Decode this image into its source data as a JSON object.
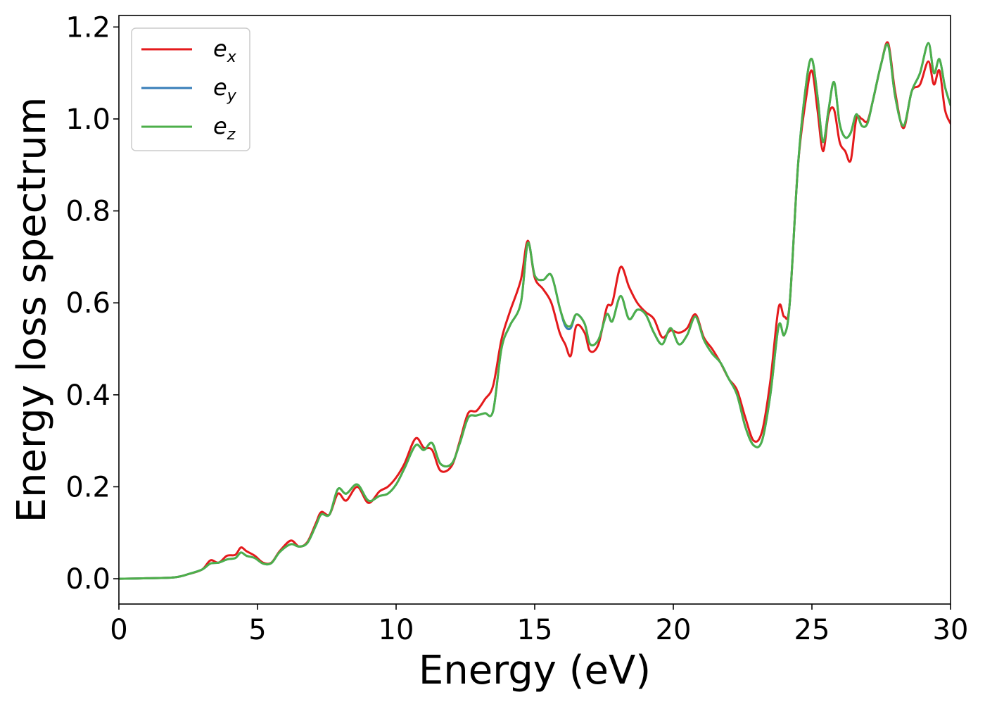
{
  "chart_data": {
    "type": "line",
    "xlabel": "Energy (eV)",
    "ylabel": "Energy loss spectrum",
    "xlim": [
      0,
      30
    ],
    "ylim": [
      -0.055,
      1.225
    ],
    "xticks": [
      0,
      5,
      10,
      15,
      20,
      25,
      30
    ],
    "xtick_labels": [
      "0",
      "5",
      "10",
      "15",
      "20",
      "25",
      "30"
    ],
    "yticks": [
      0.0,
      0.2,
      0.4,
      0.6,
      0.8,
      1.0,
      1.2
    ],
    "ytick_labels": [
      "0.0",
      "0.2",
      "0.4",
      "0.6",
      "0.8",
      "1.0",
      "1.2"
    ],
    "grid": false,
    "legend_position": "top-left",
    "series": [
      {
        "name": "e_x",
        "label_main": "e",
        "label_sub": "x",
        "color": "#e41a1c",
        "x": [
          0,
          1,
          2,
          2.5,
          3,
          3.3,
          3.6,
          3.9,
          4.2,
          4.4,
          4.6,
          4.9,
          5.2,
          5.5,
          5.8,
          6.2,
          6.5,
          6.8,
          7.1,
          7.3,
          7.6,
          7.9,
          8.2,
          8.6,
          9.0,
          9.4,
          9.7,
          10.0,
          10.3,
          10.7,
          11.0,
          11.3,
          11.6,
          12.0,
          12.3,
          12.6,
          12.9,
          13.2,
          13.5,
          13.8,
          14.1,
          14.5,
          14.75,
          15.0,
          15.3,
          15.6,
          15.9,
          16.1,
          16.3,
          16.5,
          16.8,
          17.0,
          17.3,
          17.6,
          17.8,
          18.1,
          18.4,
          18.7,
          19.0,
          19.3,
          19.6,
          19.9,
          20.2,
          20.5,
          20.8,
          21.1,
          21.4,
          21.7,
          22.0,
          22.3,
          22.6,
          22.9,
          23.2,
          23.5,
          23.8,
          24.0,
          24.2,
          24.5,
          24.8,
          25.0,
          25.2,
          25.4,
          25.6,
          25.8,
          26.0,
          26.2,
          26.4,
          26.6,
          26.8,
          27.0,
          27.2,
          27.5,
          27.75,
          28.0,
          28.3,
          28.6,
          28.9,
          29.2,
          29.4,
          29.6,
          29.8,
          30.0
        ],
        "y": [
          0.0,
          0.001,
          0.003,
          0.01,
          0.02,
          0.04,
          0.035,
          0.05,
          0.052,
          0.068,
          0.06,
          0.05,
          0.035,
          0.035,
          0.06,
          0.083,
          0.07,
          0.08,
          0.12,
          0.145,
          0.14,
          0.185,
          0.17,
          0.2,
          0.165,
          0.19,
          0.2,
          0.22,
          0.25,
          0.305,
          0.285,
          0.28,
          0.235,
          0.245,
          0.3,
          0.36,
          0.365,
          0.39,
          0.42,
          0.52,
          0.58,
          0.65,
          0.735,
          0.655,
          0.63,
          0.6,
          0.535,
          0.51,
          0.485,
          0.55,
          0.535,
          0.495,
          0.51,
          0.59,
          0.6,
          0.678,
          0.635,
          0.6,
          0.58,
          0.565,
          0.525,
          0.54,
          0.535,
          0.545,
          0.575,
          0.525,
          0.5,
          0.47,
          0.435,
          0.41,
          0.35,
          0.3,
          0.32,
          0.43,
          0.59,
          0.57,
          0.6,
          0.9,
          1.05,
          1.105,
          1.02,
          0.93,
          1.01,
          1.02,
          0.95,
          0.93,
          0.91,
          1.0,
          1.0,
          0.995,
          1.04,
          1.12,
          1.165,
          1.06,
          0.98,
          1.06,
          1.075,
          1.125,
          1.075,
          1.105,
          1.02,
          0.99
        ]
      },
      {
        "name": "e_y",
        "label_main": "e",
        "label_sub": "y",
        "color": "#377eb8",
        "x": [
          0,
          1,
          2,
          2.5,
          3,
          3.3,
          3.6,
          3.9,
          4.2,
          4.4,
          4.6,
          4.9,
          5.2,
          5.5,
          5.8,
          6.2,
          6.5,
          6.8,
          7.1,
          7.3,
          7.6,
          7.9,
          8.2,
          8.6,
          9.0,
          9.4,
          9.7,
          10.0,
          10.3,
          10.7,
          11.0,
          11.3,
          11.6,
          12.0,
          12.3,
          12.6,
          12.9,
          13.2,
          13.5,
          13.8,
          14.1,
          14.5,
          14.75,
          15.0,
          15.3,
          15.6,
          15.9,
          16.1,
          16.3,
          16.5,
          16.8,
          17.0,
          17.3,
          17.6,
          17.8,
          18.1,
          18.4,
          18.7,
          19.0,
          19.3,
          19.6,
          19.9,
          20.2,
          20.5,
          20.8,
          21.1,
          21.4,
          21.7,
          22.0,
          22.3,
          22.6,
          22.9,
          23.2,
          23.5,
          23.8,
          24.0,
          24.2,
          24.5,
          24.8,
          25.0,
          25.2,
          25.4,
          25.6,
          25.8,
          26.0,
          26.2,
          26.4,
          26.6,
          26.8,
          27.0,
          27.2,
          27.5,
          27.75,
          28.0,
          28.3,
          28.6,
          28.9,
          29.2,
          29.4,
          29.6,
          29.8,
          30.0
        ],
        "y": [
          0.0,
          0.001,
          0.003,
          0.01,
          0.02,
          0.033,
          0.035,
          0.042,
          0.045,
          0.057,
          0.05,
          0.045,
          0.033,
          0.034,
          0.058,
          0.075,
          0.07,
          0.078,
          0.115,
          0.14,
          0.14,
          0.195,
          0.185,
          0.205,
          0.17,
          0.18,
          0.185,
          0.205,
          0.24,
          0.29,
          0.28,
          0.295,
          0.25,
          0.25,
          0.295,
          0.35,
          0.355,
          0.36,
          0.365,
          0.5,
          0.55,
          0.6,
          0.73,
          0.66,
          0.65,
          0.66,
          0.59,
          0.55,
          0.545,
          0.575,
          0.555,
          0.51,
          0.52,
          0.575,
          0.56,
          0.615,
          0.565,
          0.585,
          0.575,
          0.535,
          0.51,
          0.545,
          0.51,
          0.53,
          0.57,
          0.52,
          0.49,
          0.47,
          0.435,
          0.4,
          0.33,
          0.29,
          0.3,
          0.4,
          0.55,
          0.53,
          0.6,
          0.9,
          1.08,
          1.13,
          1.05,
          0.95,
          1.02,
          1.08,
          0.99,
          0.96,
          0.97,
          1.01,
          0.985,
          0.99,
          1.04,
          1.12,
          1.16,
          1.05,
          0.985,
          1.06,
          1.1,
          1.165,
          1.1,
          1.13,
          1.07,
          1.03
        ]
      },
      {
        "name": "e_z",
        "label_main": "e",
        "label_sub": "z",
        "color": "#4daf4a",
        "x": [
          0,
          1,
          2,
          2.5,
          3,
          3.3,
          3.6,
          3.9,
          4.2,
          4.4,
          4.6,
          4.9,
          5.2,
          5.5,
          5.8,
          6.2,
          6.5,
          6.8,
          7.1,
          7.3,
          7.6,
          7.9,
          8.2,
          8.6,
          9.0,
          9.4,
          9.7,
          10.0,
          10.3,
          10.7,
          11.0,
          11.3,
          11.6,
          12.0,
          12.3,
          12.6,
          12.9,
          13.2,
          13.5,
          13.8,
          14.1,
          14.5,
          14.75,
          15.0,
          15.3,
          15.6,
          15.9,
          16.1,
          16.3,
          16.5,
          16.8,
          17.0,
          17.3,
          17.6,
          17.8,
          18.1,
          18.4,
          18.7,
          19.0,
          19.3,
          19.6,
          19.9,
          20.2,
          20.5,
          20.8,
          21.1,
          21.4,
          21.7,
          22.0,
          22.3,
          22.6,
          22.9,
          23.2,
          23.5,
          23.8,
          24.0,
          24.2,
          24.5,
          24.8,
          25.0,
          25.2,
          25.4,
          25.6,
          25.8,
          26.0,
          26.2,
          26.4,
          26.6,
          26.8,
          27.0,
          27.2,
          27.5,
          27.75,
          28.0,
          28.3,
          28.6,
          28.9,
          29.2,
          29.4,
          29.6,
          29.8,
          30.0
        ],
        "y": [
          0.0,
          0.001,
          0.003,
          0.01,
          0.02,
          0.033,
          0.035,
          0.042,
          0.045,
          0.057,
          0.05,
          0.045,
          0.033,
          0.034,
          0.058,
          0.075,
          0.07,
          0.078,
          0.115,
          0.14,
          0.14,
          0.195,
          0.185,
          0.205,
          0.17,
          0.18,
          0.185,
          0.205,
          0.24,
          0.29,
          0.28,
          0.295,
          0.25,
          0.25,
          0.295,
          0.35,
          0.355,
          0.36,
          0.365,
          0.5,
          0.55,
          0.6,
          0.73,
          0.66,
          0.65,
          0.66,
          0.59,
          0.555,
          0.55,
          0.575,
          0.555,
          0.51,
          0.52,
          0.575,
          0.56,
          0.615,
          0.565,
          0.585,
          0.575,
          0.535,
          0.51,
          0.545,
          0.51,
          0.53,
          0.57,
          0.52,
          0.49,
          0.47,
          0.435,
          0.4,
          0.33,
          0.29,
          0.3,
          0.4,
          0.55,
          0.53,
          0.6,
          0.9,
          1.08,
          1.13,
          1.05,
          0.95,
          1.02,
          1.08,
          0.99,
          0.96,
          0.97,
          1.01,
          0.985,
          0.99,
          1.04,
          1.12,
          1.16,
          1.05,
          0.985,
          1.06,
          1.1,
          1.165,
          1.1,
          1.13,
          1.07,
          1.03
        ]
      }
    ]
  }
}
